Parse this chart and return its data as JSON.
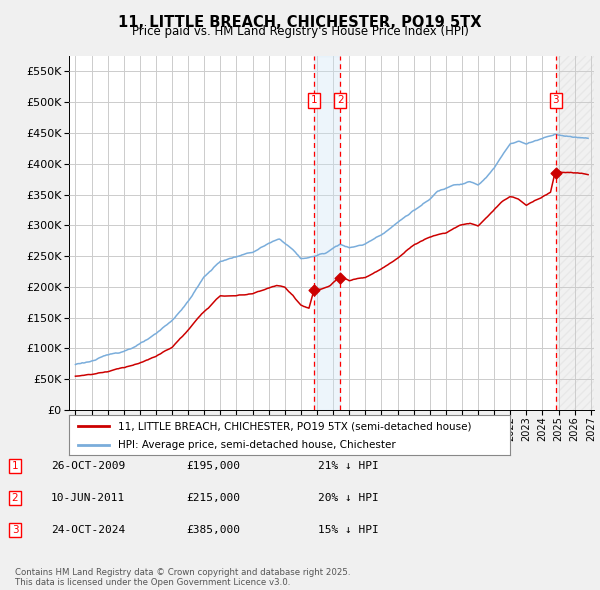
{
  "title": "11, LITTLE BREACH, CHICHESTER, PO19 5TX",
  "subtitle": "Price paid vs. HM Land Registry's House Price Index (HPI)",
  "ylim": [
    0,
    575000
  ],
  "yticks": [
    0,
    50000,
    100000,
    150000,
    200000,
    250000,
    300000,
    350000,
    400000,
    450000,
    500000,
    550000
  ],
  "ytick_labels": [
    "£0",
    "£50K",
    "£100K",
    "£150K",
    "£200K",
    "£250K",
    "£300K",
    "£350K",
    "£400K",
    "£450K",
    "£500K",
    "£550K"
  ],
  "xlim_start": 1994.6,
  "xlim_end": 2027.2,
  "background_color": "#f0f0f0",
  "plot_bg_color": "#ffffff",
  "grid_color": "#cccccc",
  "sale1_date": 2009.82,
  "sale2_date": 2011.44,
  "sale3_date": 2024.82,
  "sale1_price": 195000,
  "sale2_price": 215000,
  "sale3_price": 385000,
  "sale_color": "#cc0000",
  "hpi_color": "#7aaddb",
  "legend_label_red": "11, LITTLE BREACH, CHICHESTER, PO19 5TX (semi-detached house)",
  "legend_label_blue": "HPI: Average price, semi-detached house, Chichester",
  "table_entries": [
    {
      "num": 1,
      "date": "26-OCT-2009",
      "price": "£195,000",
      "hpi": "21% ↓ HPI"
    },
    {
      "num": 2,
      "date": "10-JUN-2011",
      "price": "£215,000",
      "hpi": "20% ↓ HPI"
    },
    {
      "num": 3,
      "date": "24-OCT-2024",
      "price": "£385,000",
      "hpi": "15% ↓ HPI"
    }
  ],
  "footer": "Contains HM Land Registry data © Crown copyright and database right 2025.\nThis data is licensed under the Open Government Licence v3.0."
}
